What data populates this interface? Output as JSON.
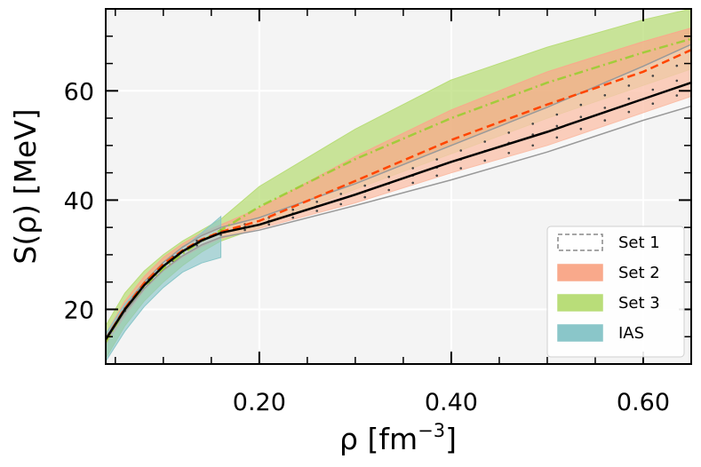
{
  "chart_data": {
    "type": "area",
    "xlabel": {
      "main": "ρ [fm",
      "sup": "−3",
      "tail": "]"
    },
    "ylabel": {
      "main": "S(ρ) [MeV]"
    },
    "xlim": [
      0.04,
      0.65
    ],
    "ylim": [
      10,
      75
    ],
    "x_ticks": [
      {
        "value": 0.2,
        "label": "0.20"
      },
      {
        "value": 0.4,
        "label": "0.40"
      },
      {
        "value": 0.6,
        "label": "0.60"
      }
    ],
    "y_ticks": [
      {
        "value": 20,
        "label": "20"
      },
      {
        "value": 40,
        "label": "40"
      },
      {
        "value": 60,
        "label": "60"
      }
    ],
    "grid": true,
    "legend_position": "lower-right",
    "legend": [
      {
        "label": "Set 1",
        "style": "hatched"
      },
      {
        "label": "Set 2",
        "color": "#f9a98b"
      },
      {
        "label": "Set 3",
        "color": "#b9dd79"
      },
      {
        "label": "IAS",
        "color": "#8ac6c9"
      }
    ],
    "series": [
      {
        "name": "Set 1",
        "x": [
          0.04,
          0.06,
          0.08,
          0.1,
          0.12,
          0.14,
          0.16,
          0.2,
          0.3,
          0.4,
          0.5,
          0.6,
          0.65
        ],
        "lower": [
          14.2,
          19.5,
          23.8,
          27.2,
          29.8,
          31.8,
          33.2,
          34.5,
          39.0,
          43.7,
          48.8,
          54.6,
          57.2
        ],
        "upper": [
          14.8,
          20.4,
          25.0,
          28.6,
          31.4,
          33.5,
          35.0,
          36.8,
          43.0,
          50.0,
          57.0,
          64.5,
          68.5
        ],
        "central": [
          14.5,
          20.0,
          24.4,
          27.9,
          30.6,
          32.6,
          34.0,
          35.5,
          41.0,
          47.0,
          52.5,
          58.5,
          61.5
        ],
        "color": "#000000"
      },
      {
        "name": "Set 2",
        "x": [
          0.04,
          0.06,
          0.08,
          0.1,
          0.12,
          0.14,
          0.16,
          0.2,
          0.3,
          0.4,
          0.5,
          0.6,
          0.65
        ],
        "lower": [
          13.5,
          18.8,
          23.5,
          27.0,
          29.5,
          31.5,
          33.0,
          34.8,
          39.5,
          45.0,
          50.0,
          56.0,
          59.0
        ],
        "upper": [
          15.5,
          21.5,
          26.0,
          29.5,
          32.0,
          34.0,
          35.5,
          38.5,
          48.0,
          56.5,
          63.5,
          69.0,
          71.5
        ],
        "central": [
          14.5,
          20.2,
          24.8,
          28.3,
          30.8,
          32.8,
          34.2,
          36.2,
          43.5,
          51.0,
          57.5,
          63.5,
          67.5
        ],
        "color": "#ff4500"
      },
      {
        "name": "Set 3",
        "x": [
          0.04,
          0.06,
          0.08,
          0.1,
          0.12,
          0.14,
          0.16,
          0.2,
          0.3,
          0.4,
          0.5,
          0.6,
          0.65
        ],
        "lower": [
          11.0,
          17.0,
          21.5,
          25.0,
          28.0,
          30.5,
          32.5,
          35.0,
          42.0,
          48.5,
          55.0,
          61.0,
          64.0
        ],
        "upper": [
          17.0,
          23.0,
          27.0,
          30.0,
          32.5,
          34.5,
          36.5,
          42.5,
          53.0,
          62.0,
          68.0,
          73.0,
          75.0
        ],
        "central": [
          14.0,
          20.0,
          24.2,
          27.5,
          30.2,
          32.5,
          34.5,
          38.8,
          47.5,
          55.0,
          61.5,
          67.0,
          69.5
        ],
        "color": "#9acd32"
      },
      {
        "name": "IAS",
        "x": [
          0.04,
          0.06,
          0.08,
          0.1,
          0.12,
          0.14,
          0.16
        ],
        "lower": [
          10.5,
          16.0,
          20.5,
          24.0,
          26.8,
          28.5,
          29.5
        ],
        "upper": [
          15.5,
          21.0,
          25.0,
          28.2,
          31.2,
          34.0,
          37.0
        ],
        "color": "#8ac6c9"
      }
    ]
  }
}
